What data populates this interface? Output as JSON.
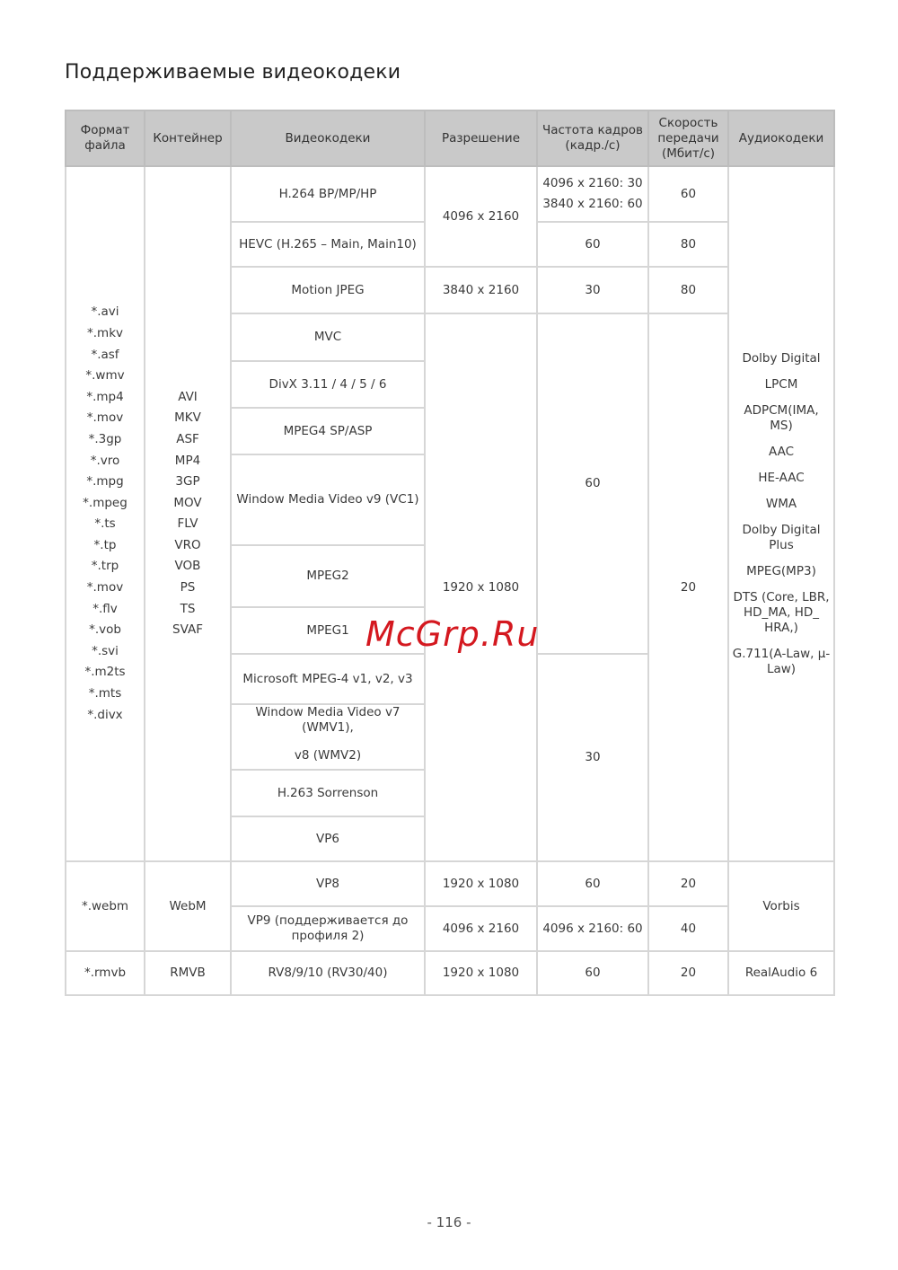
{
  "title": "Поддерживаемые видеокодеки",
  "headers": [
    "Формат файла",
    "Контейнер",
    "Видеокодеки",
    "Разрешение",
    "Частота кадров (кадр./с)",
    "Скорость передачи (Мбит/с)",
    "Аудиокодеки"
  ],
  "group1": {
    "formats": [
      "*.avi",
      "*.mkv",
      "*.asf",
      "*.wmv",
      "*.mp4",
      "*.mov",
      "*.3gp",
      "*.vro",
      "*.mpg",
      "*.mpeg",
      "*.ts",
      "*.tp",
      "*.trp",
      "*.mov",
      "*.flv",
      "*.vob",
      "*.svi",
      "*.m2ts",
      "*.mts",
      "*.divx"
    ],
    "containers": [
      "AVI",
      "MKV",
      "ASF",
      "MP4",
      "3GP",
      "MOV",
      "FLV",
      "VRO",
      "VOB",
      "PS",
      "TS",
      "SVAF"
    ],
    "codecs": [
      "H.264 BP/MP/HP",
      "HEVC (H.265 – Main, Main10)",
      "Motion JPEG",
      "MVC",
      "DivX 3.11 / 4 / 5 / 6",
      "MPEG4 SP/ASP",
      "Window Media Video v9 (VC1)",
      "MPEG2",
      "MPEG1",
      "Microsoft MPEG-4 v1, v2, v3",
      "Window Media Video v7 (WMV1),",
      "v8 (WMV2)",
      "H.263 Sorrenson",
      "VP6"
    ],
    "res": [
      "4096 x 2160",
      "3840 x 2160",
      "1920 x 1080"
    ],
    "fps": [
      "4096 x 2160: 30",
      "3840 x 2160: 60",
      "60",
      "30",
      "60",
      "30"
    ],
    "bitrate": [
      "60",
      "80",
      "80",
      "20"
    ],
    "audio": [
      "Dolby Digital",
      "LPCM",
      "ADPCM(IMA, MS)",
      "AAC",
      "HE-AAC",
      "WMA",
      "Dolby Digital Plus",
      "MPEG(MP3)",
      "DTS (Core, LBR, HD_MA, HD_ HRA,)",
      "G.711(A-Law, μ-Law)"
    ]
  },
  "webm": {
    "format": "*.webm",
    "container": "WebM",
    "codecs": [
      "VP8",
      "VP9 (поддерживается до профиля 2)"
    ],
    "res": [
      "1920 x 1080",
      "4096 x 2160"
    ],
    "fps": [
      "60",
      "4096 x 2160: 60"
    ],
    "bitrate": [
      "20",
      "40"
    ],
    "audio": "Vorbis"
  },
  "rmvb": {
    "format": "*.rmvb",
    "container": "RMVB",
    "codec": "RV8/9/10 (RV30/40)",
    "res": "1920 x 1080",
    "fps": "60",
    "bitrate": "20",
    "audio": "RealAudio 6"
  },
  "watermark": "McGrp.Ru",
  "page_number": "- 116 -"
}
